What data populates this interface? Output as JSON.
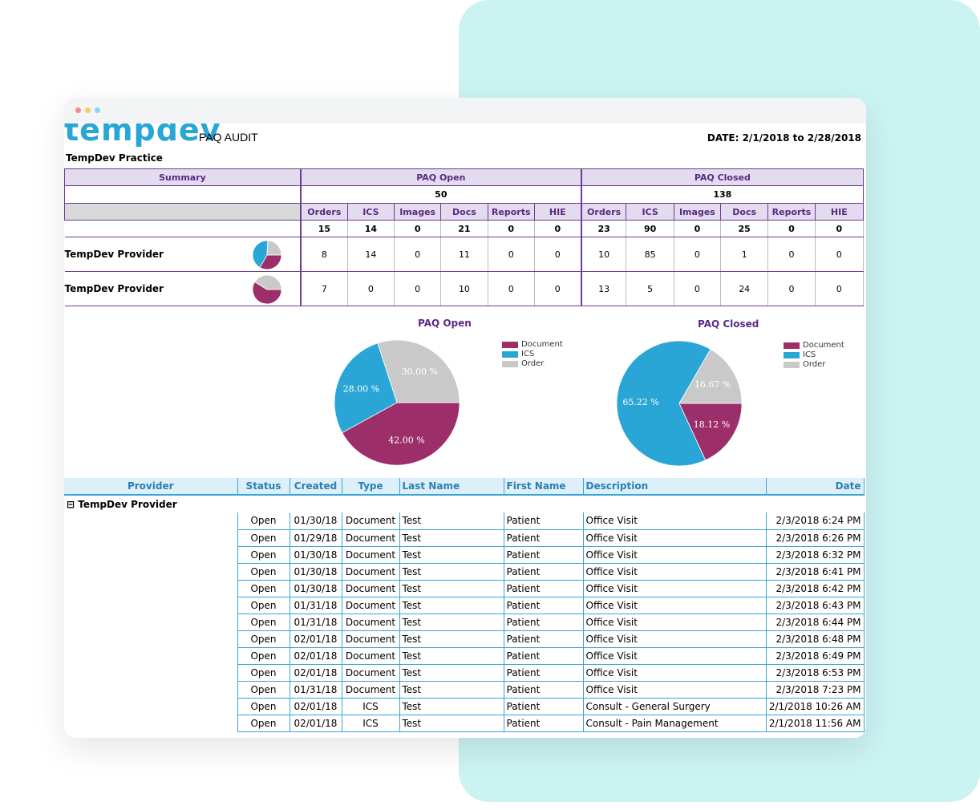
{
  "window": {
    "dots": [
      "#f28b8b",
      "#f3cc6a",
      "#8ed3f0"
    ]
  },
  "report": {
    "logo_text": "tempdev",
    "title": "PAQ AUDIT",
    "date_range": "DATE: 2/1/2018 to 2/28/2018",
    "practice": "TempDev Practice"
  },
  "summary": {
    "summary_label": "Summary",
    "open_label": "PAQ Open",
    "closed_label": "PAQ Closed",
    "open_total": "50",
    "closed_total": "138",
    "columns": [
      "Orders",
      "ICS",
      "Images",
      "Docs",
      "Reports",
      "HIE"
    ],
    "open_totals": [
      "15",
      "14",
      "0",
      "21",
      "0",
      "0"
    ],
    "closed_totals": [
      "23",
      "90",
      "0",
      "25",
      "0",
      "0"
    ],
    "providers": [
      {
        "name": "TempDev Provider",
        "open": [
          "8",
          "14",
          "0",
          "11",
          "0",
          "0"
        ],
        "closed": [
          "10",
          "85",
          "0",
          "1",
          "0",
          "0"
        ]
      },
      {
        "name": "TempDev Provider",
        "open": [
          "7",
          "0",
          "0",
          "10",
          "0",
          "0"
        ],
        "closed": [
          "13",
          "5",
          "0",
          "24",
          "0",
          "0"
        ]
      }
    ]
  },
  "colors": {
    "document": "#9c2e6a",
    "ics": "#2aa6d6",
    "order": "#c9c9c9"
  },
  "chart_data": [
    {
      "type": "pie",
      "title": "PAQ Open",
      "categories": [
        "Document",
        "ICS",
        "Order"
      ],
      "values": [
        42.0,
        28.0,
        30.0
      ],
      "labels": [
        "42.00 %",
        "28.00 %",
        "30.00 %"
      ],
      "legend": "right"
    },
    {
      "type": "pie",
      "title": "PAQ Closed",
      "categories": [
        "Document",
        "ICS",
        "Order"
      ],
      "values": [
        18.12,
        65.22,
        16.67
      ],
      "labels": [
        "18.12 %",
        "65.22 %",
        "16.67 %"
      ],
      "legend": "right"
    }
  ],
  "mini_pies": [
    {
      "values": [
        11,
        14,
        8
      ]
    },
    {
      "values": [
        10,
        0,
        7
      ]
    }
  ],
  "detail": {
    "headers": {
      "provider": "Provider",
      "status": "Status",
      "created": "Created",
      "type": "Type",
      "last_name": "Last Name",
      "first_name": "First Name",
      "description": "Description",
      "date": "Date"
    },
    "group_label": "⊟ TempDev Provider",
    "rows": [
      [
        "Open",
        "01/30/18",
        "Document",
        "Test",
        "Patient",
        "Office Visit",
        "2/3/2018 6:24 PM"
      ],
      [
        "Open",
        "01/29/18",
        "Document",
        "Test",
        "Patient",
        "Office Visit",
        "2/3/2018 6:26 PM"
      ],
      [
        "Open",
        "01/30/18",
        "Document",
        "Test",
        "Patient",
        "Office Visit",
        "2/3/2018 6:32 PM"
      ],
      [
        "Open",
        "01/30/18",
        "Document",
        "Test",
        "Patient",
        "Office Visit",
        "2/3/2018 6:41 PM"
      ],
      [
        "Open",
        "01/30/18",
        "Document",
        "Test",
        "Patient",
        "Office Visit",
        "2/3/2018 6:42 PM"
      ],
      [
        "Open",
        "01/31/18",
        "Document",
        "Test",
        "Patient",
        "Office Visit",
        "2/3/2018 6:43 PM"
      ],
      [
        "Open",
        "01/31/18",
        "Document",
        "Test",
        "Patient",
        "Office Visit",
        "2/3/2018 6:44 PM"
      ],
      [
        "Open",
        "02/01/18",
        "Document",
        "Test",
        "Patient",
        "Office Visit",
        "2/3/2018 6:48 PM"
      ],
      [
        "Open",
        "02/01/18",
        "Document",
        "Test",
        "Patient",
        "Office Visit",
        "2/3/2018 6:49 PM"
      ],
      [
        "Open",
        "02/01/18",
        "Document",
        "Test",
        "Patient",
        "Office Visit",
        "2/3/2018 6:53 PM"
      ],
      [
        "Open",
        "01/31/18",
        "Document",
        "Test",
        "Patient",
        "Office Visit",
        "2/3/2018 7:23 PM"
      ],
      [
        "Open",
        "02/01/18",
        "ICS",
        "Test",
        "Patient",
        "Consult - General Surgery",
        "2/1/2018 10:26 AM"
      ],
      [
        "Open",
        "02/01/18",
        "ICS",
        "Test",
        "Patient",
        "Consult - Pain Management",
        "2/1/2018 11:56 AM"
      ]
    ]
  }
}
